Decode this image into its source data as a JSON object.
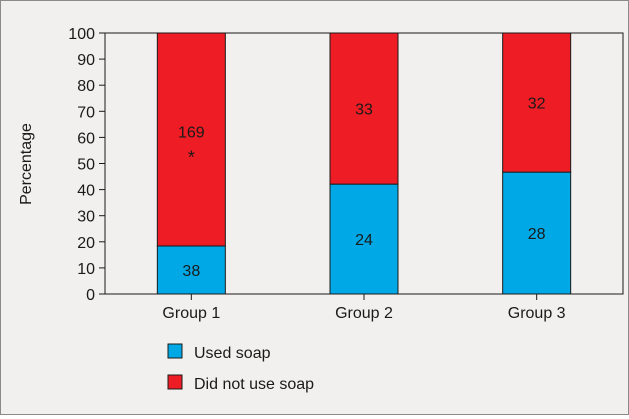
{
  "chart_data": {
    "type": "bar",
    "stacked": true,
    "title": "",
    "xlabel": "",
    "ylabel": "Percentage",
    "ylim": [
      0,
      100
    ],
    "yticks": [
      0,
      10,
      20,
      30,
      40,
      50,
      60,
      70,
      80,
      90,
      100
    ],
    "categories": [
      "Group 1",
      "Group 2",
      "Group 3"
    ],
    "series": [
      {
        "name": "Used soap",
        "color": "#00a9e6",
        "values": [
          18.4,
          42.1,
          46.7
        ],
        "labels": [
          "38",
          "24",
          "28"
        ]
      },
      {
        "name": "Did not use soap",
        "color": "#ee1c24",
        "values": [
          81.6,
          57.9,
          53.3
        ],
        "labels": [
          "169",
          "33",
          "32"
        ]
      }
    ],
    "annotations": [
      {
        "category": "Group 1",
        "series": "Did not use soap",
        "text": "*"
      }
    ],
    "grid": false,
    "legend_position": "bottom-left"
  }
}
